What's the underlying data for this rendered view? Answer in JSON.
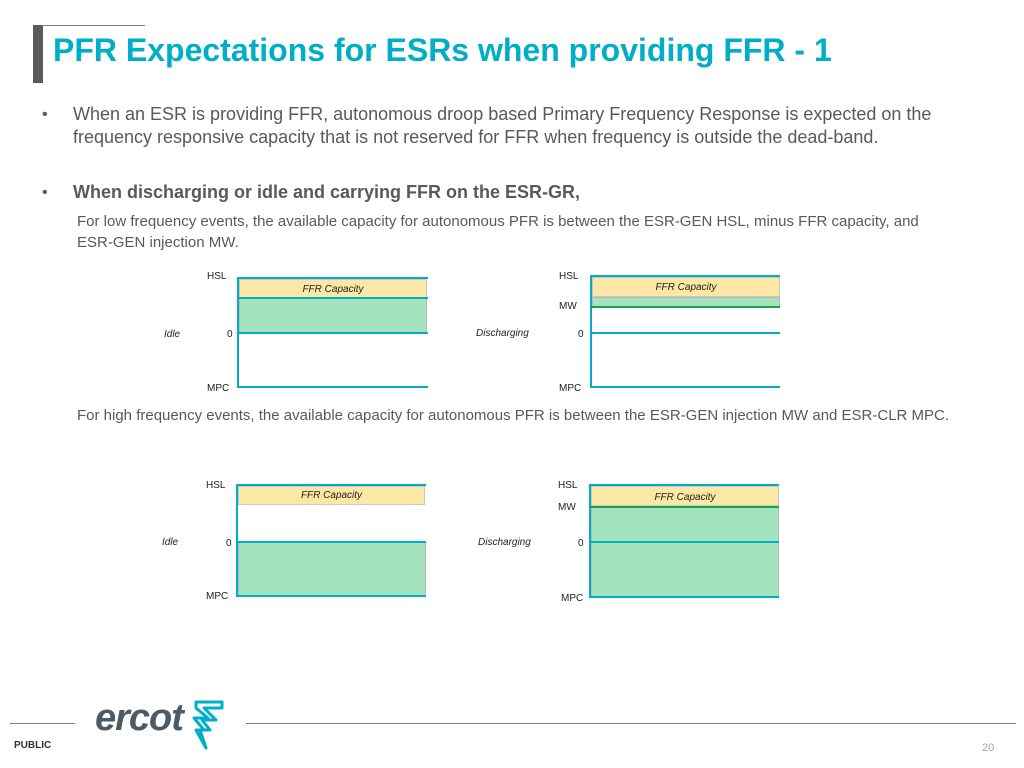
{
  "header": {
    "title": "PFR Expectations for ESRs when providing FFR - 1"
  },
  "bullets": [
    {
      "dot": "•",
      "text": "When an ESR is providing FFR, autonomous droop based Primary Frequency Response is expected on the frequency responsive capacity that is not reserved for FFR  when frequency is outside the dead-band."
    },
    {
      "dot": "•",
      "text": "When discharging or idle and carrying FFR on the ESR-GR,"
    }
  ],
  "low_freq_text": "For low frequency events, the available capacity for autonomous PFR is between the ESR-GEN HSL, minus FFR capacity, and ESR-GEN injection MW.",
  "high_freq_text": "For high frequency events, the available capacity for autonomous PFR is between the ESR-GEN injection MW and ESR-CLR MPC.",
  "diagrams": {
    "low_idle": {
      "hsl": "HSL",
      "zero": "0",
      "mpc": "MPC",
      "state": "Idle",
      "ffr": "FFR Capacity"
    },
    "low_discharging": {
      "hsl": "HSL",
      "mw": "MW",
      "zero": "0",
      "mpc": "MPC",
      "state": "Discharging",
      "ffr": "FFR Capacity"
    },
    "high_idle": {
      "hsl": "HSL",
      "zero": "0",
      "mpc": "MPC",
      "state": "Idle",
      "ffr": "FFR Capacity"
    },
    "high_discharging": {
      "hsl": "HSL",
      "mw": "MW",
      "zero": "0",
      "mpc": "MPC",
      "state": "Discharging",
      "ffr": "FFR Capacity"
    }
  },
  "footer": {
    "logo": "ercot",
    "classification": "PUBLIC",
    "page_number": "20"
  },
  "colors": {
    "title": "#00aec7",
    "axis": "#00aec7",
    "ffr_fill": "#fde7a4",
    "pfr_fill": "#a4e3bd",
    "mw_line": "#16a34a"
  },
  "icons": {
    "logo_mark": "ercot-bolt-logo-icon"
  }
}
